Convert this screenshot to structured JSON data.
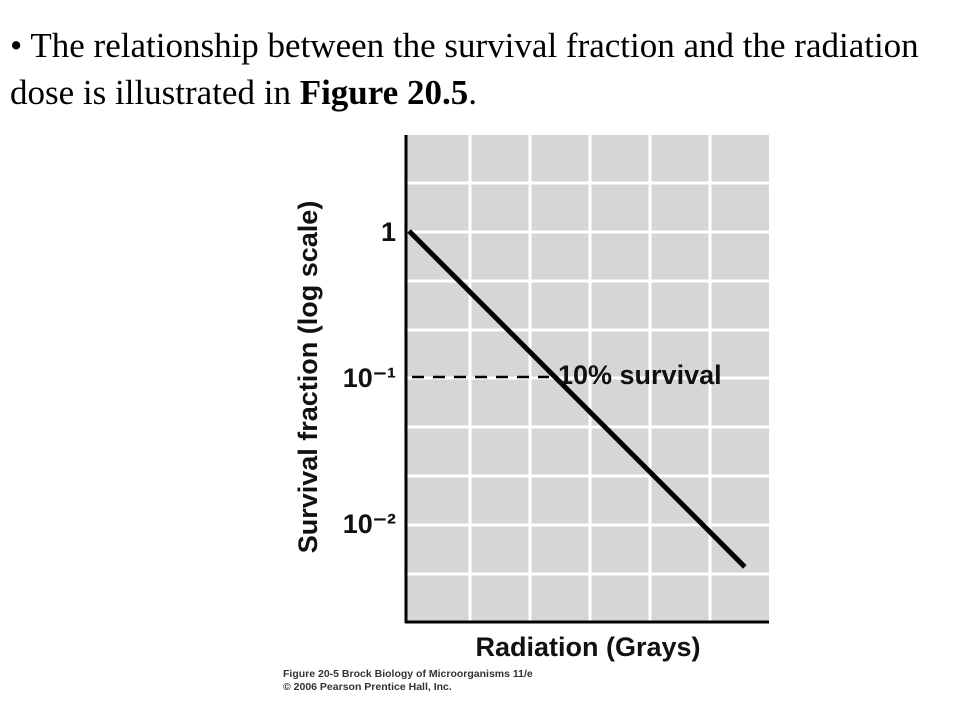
{
  "slide": {
    "bullet": "•",
    "text_before": "The relationship between the survival fraction and the radiation dose is illustrated in",
    "figure_ref": "Figure 20.5",
    "text_after": "."
  },
  "chart_data": {
    "type": "line",
    "title": "",
    "xlabel": "Radiation (Grays)",
    "ylabel": "Survival fraction (log scale)",
    "y_scale": "log",
    "y_ticks": [
      {
        "value": 1,
        "label": "1"
      },
      {
        "value": 0.1,
        "label": "10⁻¹"
      },
      {
        "value": 0.01,
        "label": "10⁻²"
      }
    ],
    "x_ticks": [],
    "grid": true,
    "series": [
      {
        "values": [
          [
            0,
            1
          ],
          [
            1,
            0.1
          ],
          [
            2,
            0.01
          ],
          [
            2.3,
            0.005
          ]
        ]
      }
    ],
    "reference_line": {
      "y": 0.1,
      "style": "dashed"
    },
    "annotation": "10% survival",
    "colors": {
      "background": "#d6d6d6",
      "grid": "#ffffff",
      "line": "#000000"
    }
  },
  "caption": {
    "line1": "Figure 20-5  Brock Biology of Microorganisms 11/e",
    "line2": "© 2006 Pearson Prentice Hall, Inc."
  }
}
